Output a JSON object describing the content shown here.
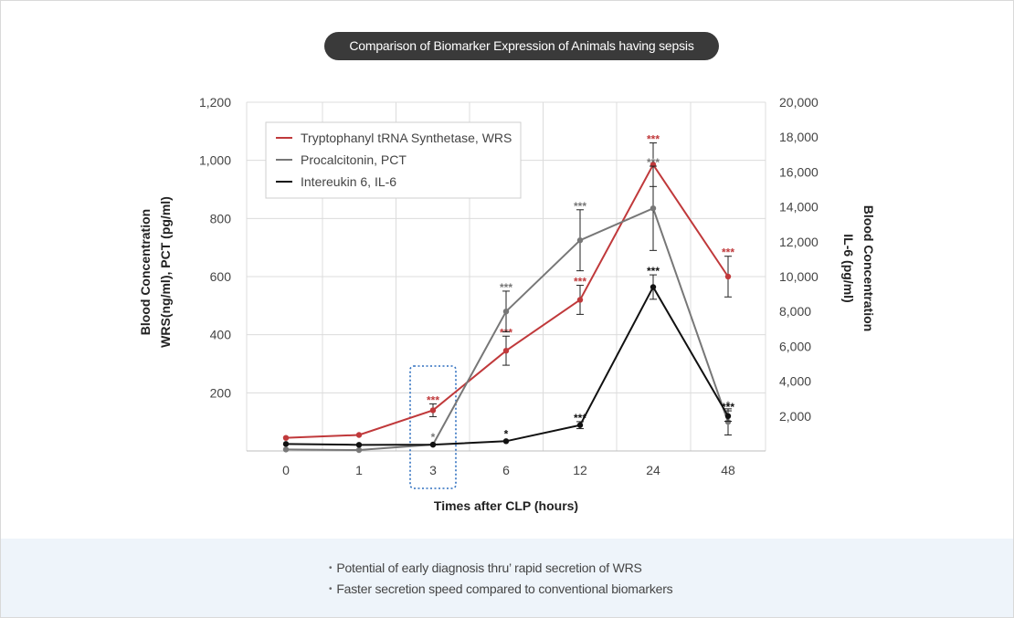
{
  "title": "Comparison of Biomarker Expression of Animals having sepsis",
  "chart_data": {
    "type": "line",
    "categories": [
      "0",
      "1",
      "3",
      "6",
      "12",
      "24",
      "48"
    ],
    "xlabel": "Times after CLP (hours)",
    "ylabel_left": [
      "Blood Concentration",
      "WRS(ng/ml),  PCT (pg/ml)"
    ],
    "ylabel_right": [
      "Blood Concentration",
      "IL-6 (pg/ml)"
    ],
    "ylim_left": [
      0,
      1200
    ],
    "yticks_left": [
      200,
      400,
      600,
      800,
      1000,
      1200
    ],
    "yticklabels_left": [
      "200",
      "400",
      "600",
      "800",
      "1,000",
      "1,200"
    ],
    "ylim_right": [
      0,
      20000
    ],
    "yticks_right": [
      2000,
      4000,
      6000,
      8000,
      10000,
      12000,
      14000,
      16000,
      18000,
      20000
    ],
    "yticklabels_right": [
      "2,000",
      "4,000",
      "6,000",
      "8,000",
      "10,000",
      "12,000",
      "14,000",
      "16,000",
      "18,000",
      "20,000"
    ],
    "grid": true,
    "legend_position": "top-left",
    "series": [
      {
        "name": "Tryptophanyl tRNA Synthetase, WRS",
        "axis": "left",
        "color": "#c0393b",
        "values": [
          45,
          55,
          140,
          345,
          520,
          985,
          600
        ],
        "errors": [
          null,
          null,
          22,
          50,
          50,
          75,
          70
        ],
        "significance": [
          "",
          "",
          "***",
          "***",
          "***",
          "***",
          "***"
        ]
      },
      {
        "name": "Procalcitonin, PCT",
        "axis": "left",
        "color": "#777777",
        "values": [
          5,
          3,
          22,
          480,
          725,
          835,
          100
        ],
        "errors": [
          null,
          null,
          null,
          70,
          105,
          145,
          45
        ],
        "significance": [
          "",
          "",
          "*",
          "***",
          "***",
          "***",
          "*"
        ]
      },
      {
        "name": "Intereukin 6, IL-6",
        "axis": "right",
        "color": "#111111",
        "values": [
          400,
          350,
          360,
          560,
          1480,
          9400,
          2000
        ],
        "errors": [
          null,
          null,
          null,
          null,
          200,
          700,
          300
        ],
        "significance": [
          "",
          "",
          "",
          "*",
          "***",
          "***",
          "***"
        ]
      }
    ],
    "highlight_category": "3"
  },
  "notes": [
    "Potential of early diagnosis thru’ rapid secretion of WRS",
    "Faster secretion speed compared to conventional biomarkers"
  ]
}
